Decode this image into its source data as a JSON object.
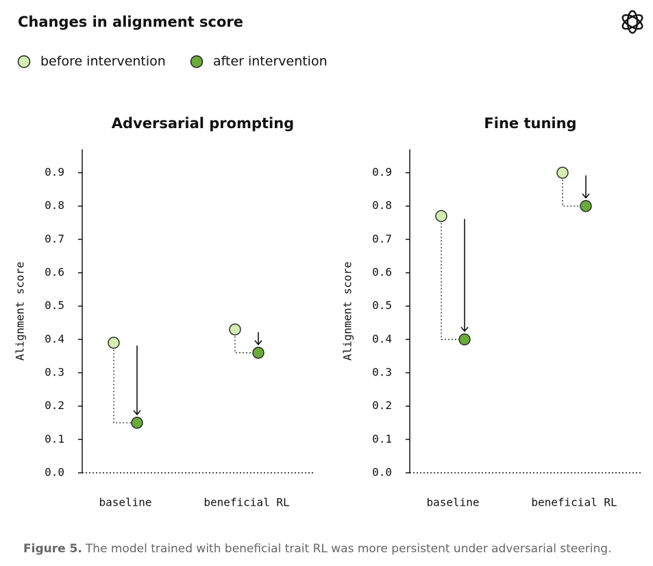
{
  "title": "Changes in alignment score",
  "caption": {
    "label": "Figure 5.",
    "text": "The model trained with beneficial trait RL was more persistent under adversarial steering."
  },
  "chart_data": [
    {
      "type": "dumbbell",
      "title": "Adversarial prompting",
      "ylabel": "Alignment score",
      "categories": [
        "baseline",
        "beneficial RL"
      ],
      "series": [
        {
          "name": "before intervention",
          "color": "#d4edb0",
          "values": [
            0.39,
            0.43
          ]
        },
        {
          "name": "after intervention",
          "color": "#6aaa3a",
          "values": [
            0.15,
            0.36
          ]
        }
      ],
      "ylim": [
        0,
        0.97
      ],
      "yticks": [
        {
          "value": 0,
          "label": "0.0"
        },
        0.1,
        0.2,
        0.3,
        0.4,
        0.5,
        0.6,
        0.7,
        0.8,
        0.9
      ]
    },
    {
      "type": "dumbbell",
      "title": "Fine tuning",
      "ylabel": "Alignment score",
      "categories": [
        "baseline",
        "beneficial RL"
      ],
      "series": [
        {
          "color": "#d4edb0",
          "values": [
            0.77,
            0.9
          ]
        },
        {
          "color": "#6aaa3a",
          "values": [
            0.4,
            0.8
          ]
        }
      ],
      "ylim": [
        0,
        0.97
      ],
      "yticks": [
        {
          "value": 0,
          "label": "0.0"
        },
        0.1,
        0.2,
        0.3,
        0.4,
        0.5,
        0.6,
        0.7,
        0.8,
        0.9
      ]
    }
  ]
}
